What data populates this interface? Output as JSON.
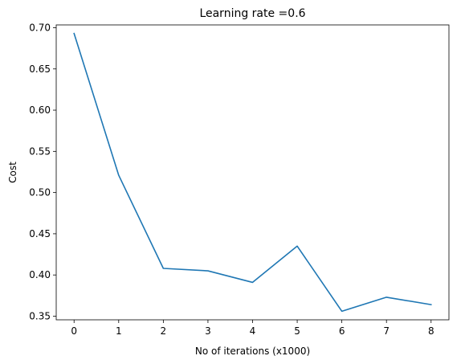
{
  "chart_data": {
    "type": "line",
    "title": "Learning rate =0.6",
    "xlabel": "No of iterations (x1000)",
    "ylabel": "Cost",
    "x": [
      0,
      1,
      2,
      3,
      4,
      5,
      6,
      7,
      8
    ],
    "series": [
      {
        "values": [
          0.693,
          0.521,
          0.408,
          0.405,
          0.391,
          0.435,
          0.356,
          0.373,
          0.364
        ]
      }
    ],
    "xlim": [
      -0.4,
      8.4
    ],
    "ylim": [
      0.3456,
      0.7034
    ],
    "xticks": [
      0,
      1,
      2,
      3,
      4,
      5,
      6,
      7,
      8
    ],
    "xtick_labels": [
      "0",
      "1",
      "2",
      "3",
      "4",
      "5",
      "6",
      "7",
      "8"
    ],
    "yticks": [
      0.35,
      0.4,
      0.45,
      0.5,
      0.55,
      0.6,
      0.65,
      0.7
    ],
    "ytick_labels": [
      "0.35",
      "0.40",
      "0.45",
      "0.50",
      "0.55",
      "0.60",
      "0.65",
      "0.70"
    ],
    "grid": false,
    "line_color": "#1f77b4"
  }
}
